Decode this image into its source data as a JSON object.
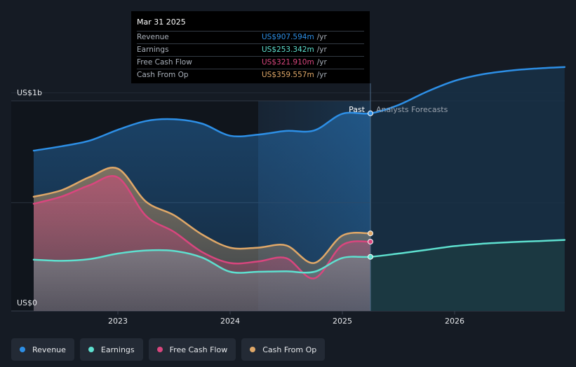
{
  "tooltip": {
    "date": "Mar 31 2025",
    "rows": [
      {
        "label": "Revenue",
        "value": "US$907.594m",
        "unit": "/yr"
      },
      {
        "label": "Earnings",
        "value": "US$253.342m",
        "unit": "/yr"
      },
      {
        "label": "Free Cash Flow",
        "value": "US$321.910m",
        "unit": "/yr"
      },
      {
        "label": "Cash From Op",
        "value": "US$359.557m",
        "unit": "/yr"
      }
    ]
  },
  "section_labels": {
    "past": "Past",
    "forecast": "Analysts Forecasts"
  },
  "legend": [
    {
      "label": "Revenue"
    },
    {
      "label": "Earnings"
    },
    {
      "label": "Free Cash Flow"
    },
    {
      "label": "Cash From Op"
    }
  ],
  "colors": {
    "Revenue": "#2d8fe6",
    "Earnings": "#5ee0cf",
    "Free Cash Flow": "#d9467e",
    "Cash From Op": "#e0a868"
  },
  "chart_data": {
    "type": "area",
    "ylabel_top": "US$1b",
    "ylabel_bottom": "US$0",
    "ylim": [
      0,
      1200
    ],
    "xlim": [
      2022.25,
      2026.98
    ],
    "xticks": [
      2023,
      2024,
      2025,
      2026
    ],
    "xtick_labels": [
      "2023",
      "2024",
      "2025",
      "2026"
    ],
    "gridlines_y": [
      1000,
      500
    ],
    "past_start": 2024.25,
    "past_end": 2025.25,
    "series": [
      {
        "name": "Revenue",
        "x": [
          2022.25,
          2022.5,
          2022.75,
          2023.0,
          2023.25,
          2023.5,
          2023.75,
          2024.0,
          2024.25,
          2024.5,
          2024.75,
          2025.0,
          2025.25,
          2025.5,
          2025.75,
          2026.0,
          2026.25,
          2026.5,
          2026.75,
          2026.98
        ],
        "values": [
          737,
          757,
          783,
          832,
          872,
          880,
          860,
          805,
          810,
          827,
          829,
          905,
          907,
          945,
          1005,
          1055,
          1085,
          1102,
          1112,
          1118
        ]
      },
      {
        "name": "Earnings",
        "x": [
          2022.25,
          2022.5,
          2022.75,
          2023.0,
          2023.25,
          2023.5,
          2023.75,
          2024.0,
          2024.25,
          2024.5,
          2024.75,
          2025.0,
          2025.25,
          2025.5,
          2025.75,
          2026.0,
          2026.25,
          2026.5,
          2026.75,
          2026.98
        ],
        "values": [
          240,
          235,
          243,
          268,
          282,
          280,
          250,
          185,
          185,
          187,
          185,
          248,
          253,
          268,
          285,
          302,
          313,
          320,
          325,
          330
        ]
      },
      {
        "name": "Free Cash Flow",
        "x": [
          2022.25,
          2022.5,
          2022.75,
          2023.0,
          2023.25,
          2023.5,
          2023.75,
          2024.0,
          2024.25,
          2024.5,
          2024.75,
          2025.0,
          2025.25
        ],
        "values": [
          495,
          528,
          580,
          615,
          440,
          367,
          275,
          225,
          232,
          247,
          155,
          307,
          322
        ]
      },
      {
        "name": "Cash From Op",
        "x": [
          2022.25,
          2022.5,
          2022.75,
          2023.0,
          2023.25,
          2023.5,
          2023.75,
          2024.0,
          2024.25,
          2024.5,
          2024.75,
          2025.0,
          2025.25
        ],
        "values": [
          527,
          557,
          617,
          655,
          505,
          443,
          355,
          295,
          295,
          305,
          225,
          350,
          360
        ]
      }
    ]
  }
}
